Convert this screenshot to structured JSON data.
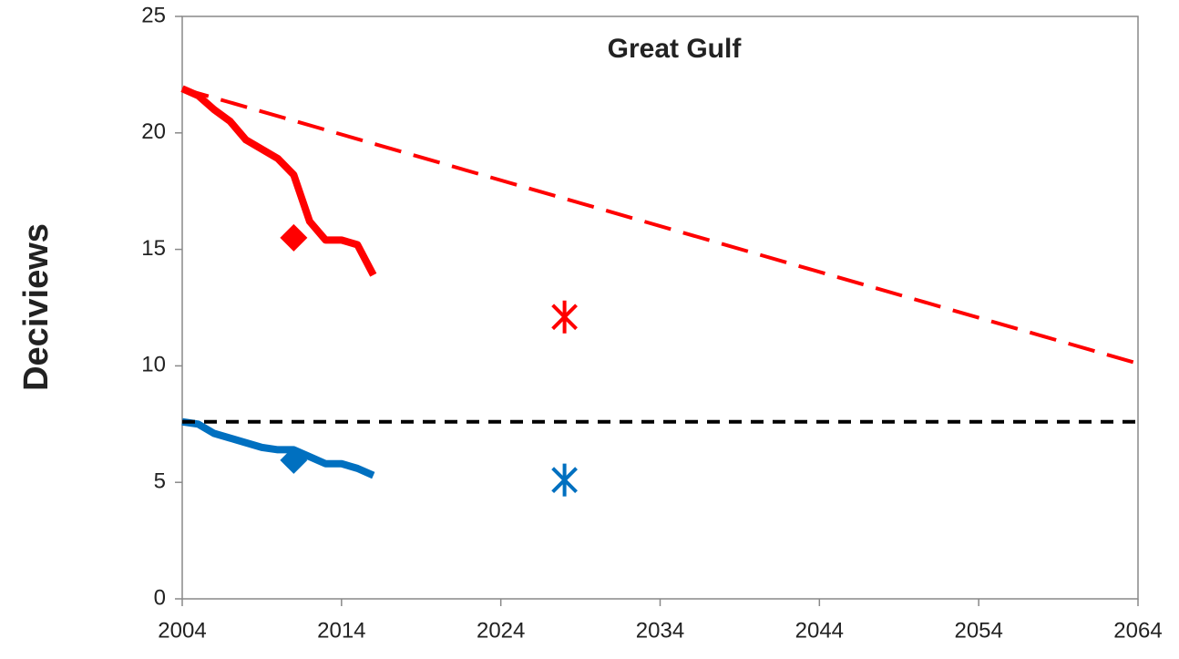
{
  "chart_data": {
    "type": "line",
    "title": "Great Gulf",
    "y_label": "Deciviews",
    "xlim": [
      2004,
      2064
    ],
    "xticks": [
      2004,
      2014,
      2024,
      2034,
      2044,
      2054,
      2064
    ],
    "ylim": [
      0,
      25
    ],
    "yticks": [
      0,
      5,
      10,
      15,
      20,
      25
    ],
    "grid": false,
    "series": [
      {
        "color": "#ff0000",
        "style": "solid",
        "x": [
          2004,
          2005,
          2006,
          2007,
          2008,
          2009,
          2010,
          2011,
          2012,
          2013,
          2014,
          2015,
          2016
        ],
        "values": [
          21.9,
          21.6,
          21.0,
          20.5,
          19.7,
          19.3,
          18.9,
          18.2,
          16.2,
          15.4,
          15.4,
          15.2,
          13.9
        ]
      },
      {
        "color": "#0070c0",
        "style": "solid",
        "x": [
          2004,
          2005,
          2006,
          2007,
          2008,
          2009,
          2010,
          2011,
          2012,
          2013,
          2014,
          2015,
          2016
        ],
        "values": [
          7.6,
          7.5,
          7.1,
          6.9,
          6.7,
          6.5,
          6.4,
          6.4,
          6.1,
          5.8,
          5.8,
          5.6,
          5.3
        ]
      },
      {
        "color": "#ff0000",
        "style": "dashed",
        "x": [
          2004,
          2064
        ],
        "values": [
          21.9,
          10.1
        ]
      },
      {
        "color": "#000000",
        "style": "dashed-short",
        "x": [
          2004,
          2064
        ],
        "values": [
          7.6,
          7.6
        ]
      },
      {
        "color": "#ff0000",
        "style": "diamond",
        "x": [
          2011
        ],
        "values": [
          15.5
        ]
      },
      {
        "color": "#0070c0",
        "style": "diamond",
        "x": [
          2011
        ],
        "values": [
          5.95
        ]
      },
      {
        "color": "#ff0000",
        "style": "asterisk",
        "x": [
          2028
        ],
        "values": [
          12.1
        ]
      },
      {
        "color": "#0070c0",
        "style": "asterisk",
        "x": [
          2028
        ],
        "values": [
          5.1
        ]
      }
    ]
  }
}
